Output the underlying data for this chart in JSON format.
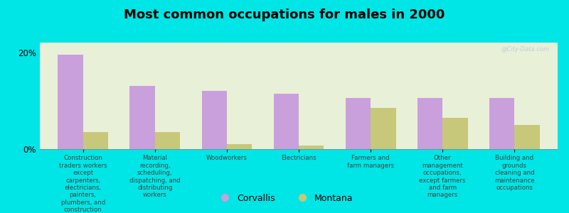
{
  "title": "Most common occupations for males in 2000",
  "categories": [
    "Construction\ntraders workers\nexcept\ncarpenters,\nelectricians,\npainters,\nplumbers, and\nconstruction\nlaborers",
    "Material\nrecording,\nscheduling,\ndispatching, and\ndistributing\nworkers",
    "Woodworkers",
    "Electricians",
    "Farmers and\nfarm managers",
    "Other\nmanagement\noccupations,\nexcept farmers\nand farm\nmanagers",
    "Building and\ngrounds\ncleaning and\nmaintenance\noccupations"
  ],
  "corvallis": [
    19.5,
    13.0,
    12.0,
    11.5,
    10.5,
    10.5,
    10.5
  ],
  "montana": [
    3.5,
    3.5,
    1.0,
    0.8,
    8.5,
    6.5,
    5.0
  ],
  "corvallis_color": "#c9a0dc",
  "montana_color": "#c8c87a",
  "background_color": "#00e5e5",
  "plot_bg_color": "#e8f0d8",
  "ylim": [
    0,
    22
  ],
  "ytick_labels": [
    "0%",
    "20%"
  ],
  "bar_width": 0.35,
  "watermark": "@City-Data.com"
}
